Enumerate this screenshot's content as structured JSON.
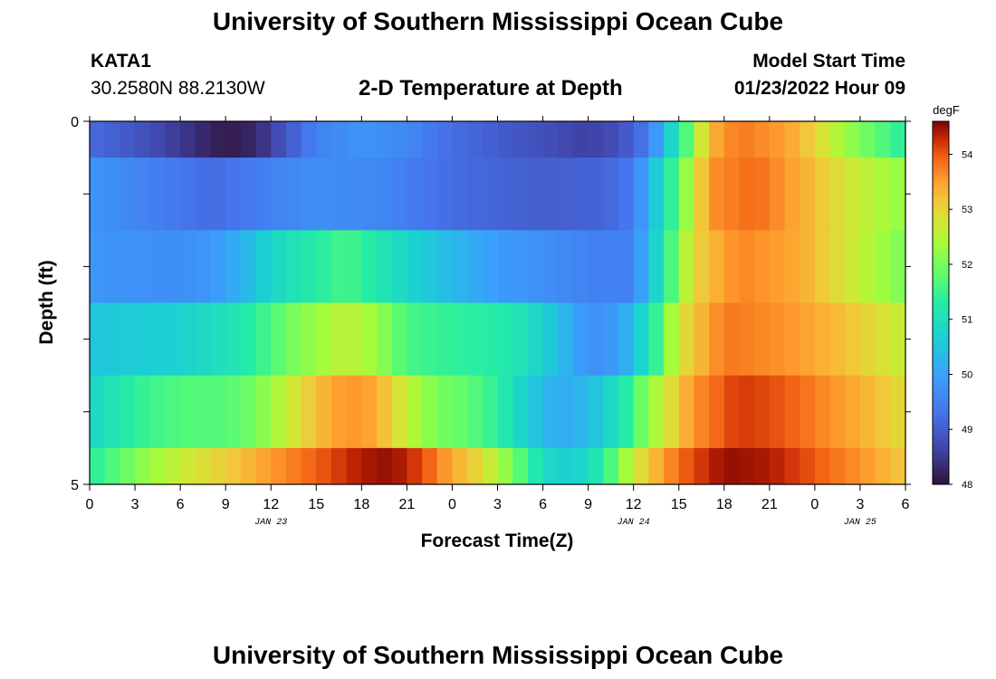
{
  "header": {
    "title": "University of Southern Mississippi Ocean Cube",
    "footer_title": "University of Southern Mississippi Ocean Cube",
    "station": "KATA1",
    "coords": "30.2580N  88.2130W",
    "plot_title": "2-D Temperature at Depth",
    "model_start_label": "Model Start Time",
    "model_start_value": "01/23/2022 Hour 09"
  },
  "chart_data": {
    "type": "heatmap",
    "title": "2-D Temperature at Depth",
    "xlabel": "Forecast Time(Z)",
    "ylabel": "Depth (ft)",
    "x_range": [
      0,
      54
    ],
    "y_range": [
      0,
      5
    ],
    "x_tick_labels": [
      "0",
      "3",
      "6",
      "9",
      "12",
      "15",
      "18",
      "21",
      "0",
      "3",
      "6",
      "9",
      "12",
      "15",
      "18",
      "21",
      "0",
      "3",
      "6"
    ],
    "y_tick_labels": [
      "0",
      "5"
    ],
    "date_labels": [
      {
        "label": "JAN 23",
        "hour": 12
      },
      {
        "label": "JAN 24",
        "hour": 36
      },
      {
        "label": "JAN 25",
        "hour": 51
      }
    ],
    "colorbar": {
      "unit": "degF",
      "min": 48.0,
      "max": 54.6,
      "ticks": [
        48,
        49,
        50,
        51,
        52,
        53,
        54
      ],
      "tick_labels": [
        "48",
        "49",
        "50",
        "51",
        "52",
        "53",
        "54"
      ]
    },
    "rows": [
      {
        "depth_range": [
          0,
          0.5
        ],
        "keyframes": [
          [
            0,
            49.2
          ],
          [
            3,
            48.9
          ],
          [
            6,
            48.5
          ],
          [
            9,
            48.1
          ],
          [
            11,
            48.3
          ],
          [
            13,
            48.9
          ],
          [
            15,
            49.5
          ],
          [
            18,
            49.8
          ],
          [
            21,
            49.6
          ],
          [
            24,
            49.2
          ],
          [
            27,
            49.0
          ],
          [
            30,
            48.8
          ],
          [
            33,
            48.6
          ],
          [
            35,
            48.8
          ],
          [
            37,
            49.4
          ],
          [
            38,
            50.3
          ],
          [
            39.5,
            51.7
          ],
          [
            41,
            53.3
          ],
          [
            43,
            53.8
          ],
          [
            46,
            53.5
          ],
          [
            48,
            53.0
          ],
          [
            50,
            52.3
          ],
          [
            52,
            51.8
          ],
          [
            54,
            51.3
          ]
        ]
      },
      {
        "depth_range": [
          0.5,
          1.5
        ],
        "keyframes": [
          [
            0,
            49.8
          ],
          [
            4,
            49.5
          ],
          [
            8,
            49.2
          ],
          [
            12,
            49.5
          ],
          [
            15,
            49.7
          ],
          [
            19,
            49.6
          ],
          [
            24,
            49.2
          ],
          [
            30,
            49.0
          ],
          [
            34,
            49.1
          ],
          [
            36,
            49.4
          ],
          [
            37.5,
            50.6
          ],
          [
            39,
            51.8
          ],
          [
            41,
            53.6
          ],
          [
            44,
            53.9
          ],
          [
            47,
            53.4
          ],
          [
            50,
            52.8
          ],
          [
            54,
            52.2
          ]
        ]
      },
      {
        "depth_range": [
          1.5,
          2.5
        ],
        "keyframes": [
          [
            0,
            49.8
          ],
          [
            5,
            49.7
          ],
          [
            8,
            49.8
          ],
          [
            10,
            50.2
          ],
          [
            12,
            50.8
          ],
          [
            15,
            51.3
          ],
          [
            17,
            51.6
          ],
          [
            19,
            51.2
          ],
          [
            21,
            50.8
          ],
          [
            24,
            50.3
          ],
          [
            27,
            49.9
          ],
          [
            30,
            49.7
          ],
          [
            33,
            49.5
          ],
          [
            36,
            49.5
          ],
          [
            38,
            51.2
          ],
          [
            40,
            53.0
          ],
          [
            43,
            53.7
          ],
          [
            47,
            53.4
          ],
          [
            50,
            52.8
          ],
          [
            54,
            52.0
          ]
        ]
      },
      {
        "depth_range": [
          2.5,
          3.5
        ],
        "keyframes": [
          [
            0,
            50.5
          ],
          [
            3,
            50.6
          ],
          [
            6,
            50.7
          ],
          [
            9,
            51.0
          ],
          [
            11,
            51.4
          ],
          [
            13,
            51.9
          ],
          [
            15,
            52.3
          ],
          [
            17,
            52.6
          ],
          [
            19,
            52.3
          ],
          [
            21,
            51.6
          ],
          [
            24,
            51.4
          ],
          [
            27,
            51.3
          ],
          [
            29,
            51.0
          ],
          [
            31,
            50.4
          ],
          [
            33,
            49.7
          ],
          [
            35,
            49.9
          ],
          [
            37,
            51.0
          ],
          [
            39,
            52.8
          ],
          [
            42,
            53.8
          ],
          [
            46,
            53.6
          ],
          [
            50,
            53.2
          ],
          [
            54,
            52.6
          ]
        ]
      },
      {
        "depth_range": [
          3.5,
          4.5
        ],
        "keyframes": [
          [
            0,
            50.8
          ],
          [
            3,
            51.4
          ],
          [
            6,
            51.7
          ],
          [
            9,
            51.7
          ],
          [
            11,
            52.0
          ],
          [
            13,
            52.6
          ],
          [
            15,
            53.2
          ],
          [
            17,
            53.6
          ],
          [
            19,
            53.4
          ],
          [
            21,
            52.6
          ],
          [
            23,
            52.0
          ],
          [
            25,
            51.8
          ],
          [
            27,
            51.4
          ],
          [
            29,
            50.6
          ],
          [
            31,
            50.1
          ],
          [
            33,
            50.3
          ],
          [
            35,
            51.0
          ],
          [
            37,
            52.2
          ],
          [
            40,
            53.6
          ],
          [
            43,
            54.2
          ],
          [
            46,
            54.0
          ],
          [
            50,
            53.5
          ],
          [
            54,
            52.9
          ]
        ]
      },
      {
        "depth_range": [
          4.5,
          5.0
        ],
        "keyframes": [
          [
            0,
            51.3
          ],
          [
            2,
            51.8
          ],
          [
            4,
            52.3
          ],
          [
            7,
            52.8
          ],
          [
            10,
            53.2
          ],
          [
            13,
            53.7
          ],
          [
            16,
            54.1
          ],
          [
            18,
            54.4
          ],
          [
            20,
            54.5
          ],
          [
            22,
            54.1
          ],
          [
            24,
            53.4
          ],
          [
            26,
            52.9
          ],
          [
            28,
            52.0
          ],
          [
            30,
            50.9
          ],
          [
            32,
            50.6
          ],
          [
            34,
            51.3
          ],
          [
            36,
            52.7
          ],
          [
            39,
            53.9
          ],
          [
            42,
            54.5
          ],
          [
            45,
            54.4
          ],
          [
            48,
            54.0
          ],
          [
            51,
            53.6
          ],
          [
            54,
            53.1
          ]
        ]
      }
    ]
  }
}
